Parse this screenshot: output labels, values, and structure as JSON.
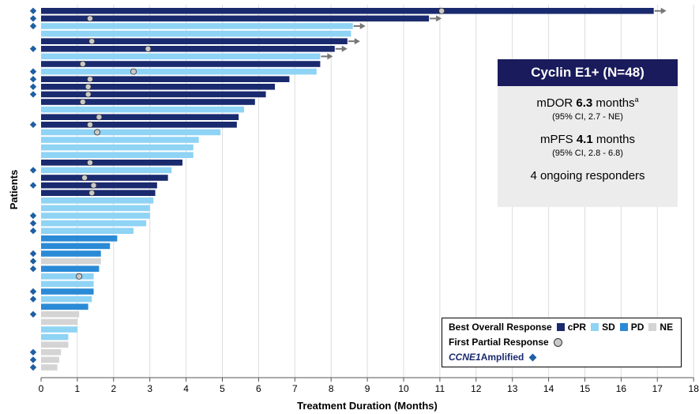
{
  "chart_data": {
    "type": "bar",
    "orientation": "horizontal",
    "xlabel": "Treatment Duration (Months)",
    "ylabel": "Patients",
    "xlim": [
      0,
      18
    ],
    "x_ticks": [
      "0",
      "1",
      "2",
      "3",
      "4",
      "5",
      "6",
      "7",
      "8",
      "9",
      "10",
      "11",
      "12",
      "13",
      "14",
      "15",
      "16",
      "17",
      "18"
    ],
    "grid": true,
    "response_colors": {
      "cPR": "#1a2a6e",
      "SD": "#8fd3f5",
      "PD": "#2a8ad6",
      "NE": "#d4d4d4"
    },
    "patients": [
      {
        "duration": 16.9,
        "response": "cPR",
        "ongoing": true,
        "first_pr": 11.05,
        "ccne1": true
      },
      {
        "duration": 10.7,
        "response": "cPR",
        "ongoing": true,
        "first_pr": 1.35,
        "ccne1": true
      },
      {
        "duration": 8.6,
        "response": "SD",
        "ongoing": true,
        "first_pr": null,
        "ccne1": true
      },
      {
        "duration": 8.55,
        "response": "SD",
        "ongoing": false,
        "first_pr": null,
        "ccne1": false
      },
      {
        "duration": 8.45,
        "response": "cPR",
        "ongoing": true,
        "first_pr": 1.4,
        "ccne1": false
      },
      {
        "duration": 8.1,
        "response": "cPR",
        "ongoing": true,
        "first_pr": 2.95,
        "ccne1": true
      },
      {
        "duration": 7.7,
        "response": "SD",
        "ongoing": true,
        "first_pr": null,
        "ccne1": false
      },
      {
        "duration": 7.7,
        "response": "cPR",
        "ongoing": false,
        "first_pr": 1.15,
        "ccne1": false
      },
      {
        "duration": 7.6,
        "response": "SD",
        "ongoing": false,
        "first_pr": 2.55,
        "ccne1": true
      },
      {
        "duration": 6.85,
        "response": "cPR",
        "ongoing": false,
        "first_pr": 1.35,
        "ccne1": true
      },
      {
        "duration": 6.45,
        "response": "cPR",
        "ongoing": false,
        "first_pr": 1.3,
        "ccne1": true
      },
      {
        "duration": 6.2,
        "response": "cPR",
        "ongoing": false,
        "first_pr": 1.3,
        "ccne1": true
      },
      {
        "duration": 5.9,
        "response": "cPR",
        "ongoing": false,
        "first_pr": 1.15,
        "ccne1": false
      },
      {
        "duration": 5.6,
        "response": "SD",
        "ongoing": false,
        "first_pr": null,
        "ccne1": false
      },
      {
        "duration": 5.45,
        "response": "cPR",
        "ongoing": false,
        "first_pr": 1.6,
        "ccne1": false
      },
      {
        "duration": 5.4,
        "response": "cPR",
        "ongoing": false,
        "first_pr": 1.35,
        "ccne1": true
      },
      {
        "duration": 4.95,
        "response": "SD",
        "ongoing": false,
        "first_pr": 1.55,
        "ccne1": false
      },
      {
        "duration": 4.35,
        "response": "SD",
        "ongoing": false,
        "first_pr": null,
        "ccne1": false
      },
      {
        "duration": 4.2,
        "response": "SD",
        "ongoing": false,
        "first_pr": null,
        "ccne1": false
      },
      {
        "duration": 4.2,
        "response": "SD",
        "ongoing": false,
        "first_pr": null,
        "ccne1": false
      },
      {
        "duration": 3.9,
        "response": "cPR",
        "ongoing": false,
        "first_pr": 1.35,
        "ccne1": false
      },
      {
        "duration": 3.6,
        "response": "SD",
        "ongoing": false,
        "first_pr": null,
        "ccne1": true
      },
      {
        "duration": 3.5,
        "response": "cPR",
        "ongoing": false,
        "first_pr": 1.2,
        "ccne1": false
      },
      {
        "duration": 3.2,
        "response": "cPR",
        "ongoing": false,
        "first_pr": 1.45,
        "ccne1": true
      },
      {
        "duration": 3.15,
        "response": "cPR",
        "ongoing": false,
        "first_pr": 1.4,
        "ccne1": false
      },
      {
        "duration": 3.1,
        "response": "SD",
        "ongoing": false,
        "first_pr": null,
        "ccne1": false
      },
      {
        "duration": 3.0,
        "response": "SD",
        "ongoing": false,
        "first_pr": null,
        "ccne1": false
      },
      {
        "duration": 3.0,
        "response": "SD",
        "ongoing": false,
        "first_pr": null,
        "ccne1": true
      },
      {
        "duration": 2.9,
        "response": "SD",
        "ongoing": false,
        "first_pr": null,
        "ccne1": true
      },
      {
        "duration": 2.55,
        "response": "SD",
        "ongoing": false,
        "first_pr": null,
        "ccne1": true
      },
      {
        "duration": 2.1,
        "response": "PD",
        "ongoing": false,
        "first_pr": null,
        "ccne1": false
      },
      {
        "duration": 1.9,
        "response": "PD",
        "ongoing": false,
        "first_pr": null,
        "ccne1": false
      },
      {
        "duration": 1.65,
        "response": "PD",
        "ongoing": false,
        "first_pr": null,
        "ccne1": true
      },
      {
        "duration": 1.65,
        "response": "NE",
        "ongoing": false,
        "first_pr": null,
        "ccne1": true
      },
      {
        "duration": 1.6,
        "response": "PD",
        "ongoing": false,
        "first_pr": null,
        "ccne1": true
      },
      {
        "duration": 1.45,
        "response": "SD",
        "ongoing": false,
        "first_pr": 1.05,
        "ccne1": false
      },
      {
        "duration": 1.45,
        "response": "SD",
        "ongoing": false,
        "first_pr": null,
        "ccne1": false
      },
      {
        "duration": 1.45,
        "response": "PD",
        "ongoing": false,
        "first_pr": null,
        "ccne1": true
      },
      {
        "duration": 1.4,
        "response": "SD",
        "ongoing": false,
        "first_pr": null,
        "ccne1": true
      },
      {
        "duration": 1.3,
        "response": "PD",
        "ongoing": false,
        "first_pr": null,
        "ccne1": false
      },
      {
        "duration": 1.05,
        "response": "NE",
        "ongoing": false,
        "first_pr": null,
        "ccne1": true
      },
      {
        "duration": 1.0,
        "response": "NE",
        "ongoing": false,
        "first_pr": null,
        "ccne1": false
      },
      {
        "duration": 1.0,
        "response": "SD",
        "ongoing": false,
        "first_pr": null,
        "ccne1": false
      },
      {
        "duration": 0.75,
        "response": "SD",
        "ongoing": false,
        "first_pr": null,
        "ccne1": false
      },
      {
        "duration": 0.75,
        "response": "NE",
        "ongoing": false,
        "first_pr": null,
        "ccne1": false
      },
      {
        "duration": 0.55,
        "response": "NE",
        "ongoing": false,
        "first_pr": null,
        "ccne1": true
      },
      {
        "duration": 0.5,
        "response": "NE",
        "ongoing": false,
        "first_pr": null,
        "ccne1": true
      },
      {
        "duration": 0.45,
        "response": "NE",
        "ongoing": false,
        "first_pr": null,
        "ccne1": true
      }
    ]
  },
  "info_box": {
    "title": "Cyclin E1+ (N=48)",
    "mdor_prefix": "mDOR ",
    "mdor_value": "6.3",
    "mdor_unit": " months",
    "mdor_sup": "a",
    "mdor_ci": "(95% CI, 2.7 - NE)",
    "mpfs_prefix": "mPFS ",
    "mpfs_value": "4.1",
    "mpfs_unit": " months",
    "mpfs_ci": "(95% CI, 2.8 - 6.8)",
    "responders": "4 ongoing responders"
  },
  "legend": {
    "title": "Best Overall Response",
    "cpr": "cPR",
    "sd": "SD",
    "pd": "PD",
    "ne": "NE",
    "first_pr": "First Partial Response",
    "ccne1_italic": "CCNE1",
    "ccne1_rest": " Amplified"
  }
}
